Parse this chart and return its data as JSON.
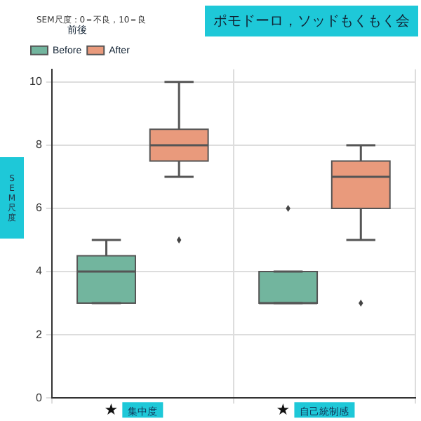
{
  "chart_data": {
    "type": "box",
    "title": "ポモドーロ，ソッドもくもく会",
    "subtitle": "SEM尺度：0＝不良，10＝良",
    "ylabel": "SEM尺度",
    "legend_title": "前後",
    "legend": "top left",
    "grid": true,
    "categories": [
      "集中度",
      "自己統制感"
    ],
    "ylim": [
      0,
      10.4
    ],
    "yticks": [
      0,
      2,
      4,
      6,
      8,
      10
    ],
    "series": [
      {
        "name": "Before",
        "color": "#72b59e",
        "boxes": [
          {
            "low": 3,
            "q1": 3,
            "median": 4,
            "q3": 4.5,
            "high": 5
          },
          {
            "low": 3,
            "q1": 3,
            "median": 3,
            "q3": 4,
            "high": 4,
            "outliers": [
              6
            ]
          }
        ]
      },
      {
        "name": "After",
        "color": "#e99a7c",
        "boxes": [
          {
            "low": 7,
            "q1": 7.5,
            "median": 8,
            "q3": 8.5,
            "high": 10,
            "outliers": [
              5
            ]
          },
          {
            "low": 5,
            "q1": 6,
            "median": 7,
            "q3": 7.5,
            "high": 8,
            "outliers": [
              3
            ]
          }
        ]
      }
    ],
    "annotations": [
      "★",
      "★"
    ]
  }
}
